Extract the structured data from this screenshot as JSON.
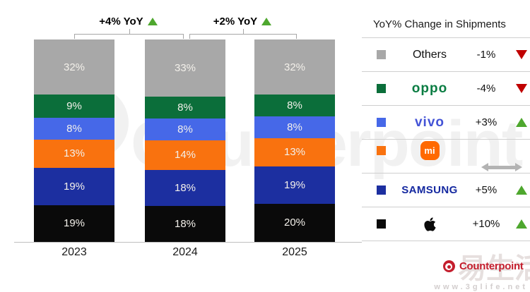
{
  "chart_data": {
    "type": "bar",
    "variant": "stacked-100-percent",
    "title": "",
    "categories": [
      "2023",
      "2024",
      "2025"
    ],
    "unit": "%",
    "series": [
      {
        "name": "Others",
        "color": "#a8a8a8",
        "values": [
          32,
          33,
          32
        ]
      },
      {
        "name": "OPPO",
        "color": "#0b6e3a",
        "values": [
          9,
          8,
          8
        ]
      },
      {
        "name": "vivo",
        "color": "#4668e8",
        "values": [
          8,
          8,
          8
        ]
      },
      {
        "name": "Xiaomi",
        "color": "#f9720f",
        "values": [
          13,
          14,
          13
        ]
      },
      {
        "name": "Samsung",
        "color": "#1c2fa0",
        "values": [
          19,
          18,
          19
        ]
      },
      {
        "name": "Apple",
        "color": "#0a0a0a",
        "values": [
          19,
          18,
          20
        ]
      }
    ],
    "annotations": [
      {
        "label": "+4% YoY",
        "direction": "up",
        "between": [
          "2023",
          "2024"
        ]
      },
      {
        "label": "+2% YoY",
        "direction": "up",
        "between": [
          "2024",
          "2025"
        ]
      }
    ],
    "legend_position": "right",
    "grid": false
  },
  "legend": {
    "title": "YoY% Change in Shipments",
    "rows": [
      {
        "brand": "Others",
        "logo_text": "Others",
        "value": "-1%",
        "direction": "down",
        "swatch": "#a8a8a8"
      },
      {
        "brand": "OPPO",
        "logo_text": "oppo",
        "value": "-4%",
        "direction": "down",
        "swatch": "#0b6e3a"
      },
      {
        "brand": "vivo",
        "logo_text": "vivo",
        "value": "+3%",
        "direction": "up",
        "swatch": "#4668e8"
      },
      {
        "brand": "Xiaomi",
        "logo_text": "mi",
        "value": "",
        "direction": "flat",
        "swatch": "#f9720f"
      },
      {
        "brand": "Samsung",
        "logo_text": "SAMSUNG",
        "value": "+5%",
        "direction": "up",
        "swatch": "#1c2fa0"
      },
      {
        "brand": "Apple",
        "logo_text": "",
        "value": "+10%",
        "direction": "up",
        "swatch": "#0a0a0a"
      }
    ]
  },
  "colors": {
    "up": "#4ea72e",
    "down": "#c00000",
    "flat": "#b3b3b3",
    "bracket": "#a6a6a6",
    "axis": "#bfbfbf",
    "red": "#c41e2d"
  },
  "footer": {
    "logo": "Counterpoint"
  },
  "watermarks": {
    "big": "Counterpoint",
    "cn": "易生活",
    "url": "www.3glife.net"
  }
}
